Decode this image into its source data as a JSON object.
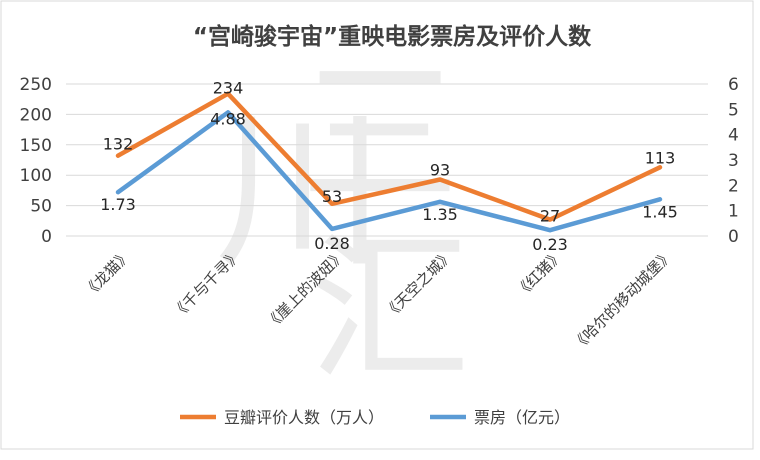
{
  "chart_data": {
    "type": "line",
    "title": "“宫崎骏宇宙”重映电影票房及评价人数",
    "categories": [
      "《龙猫》",
      "《千与千寻》",
      "《崖上的波妞》",
      "《天空之城》",
      "《红猪》",
      "《哈尔的移动城堡》"
    ],
    "series": [
      {
        "name": "豆瓣评价人数（万人）",
        "axis": "left",
        "color": "#ED7D31",
        "values": [
          132,
          234,
          53,
          93,
          27,
          113
        ],
        "labels": [
          "132",
          "234",
          "53",
          "93",
          "27",
          "113"
        ]
      },
      {
        "name": "票房（亿元）",
        "axis": "right",
        "color": "#5B9BD5",
        "values": [
          1.73,
          4.88,
          0.28,
          1.35,
          0.23,
          1.45
        ],
        "labels": [
          "1.73",
          "4.88",
          "0.28",
          "1.35",
          "0.23",
          "1.45"
        ]
      }
    ],
    "y_left": {
      "range": [
        0,
        250
      ],
      "ticks": [
        "0",
        "50",
        "100",
        "150",
        "200",
        "250"
      ]
    },
    "y_right": {
      "range": [
        0,
        6
      ],
      "ticks": [
        "0",
        "1",
        "2",
        "3",
        "4",
        "5",
        "6"
      ]
    },
    "grid": true,
    "legend": "bottom",
    "watermark": [
      "三",
      "川",
      "汇"
    ]
  }
}
